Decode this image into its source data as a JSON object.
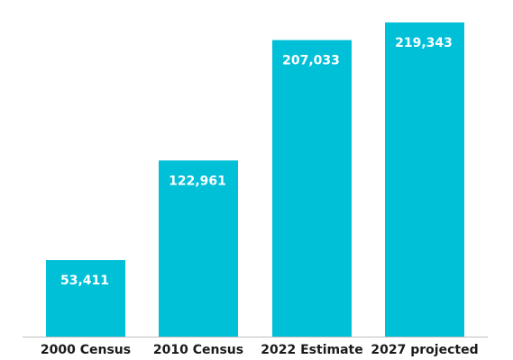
{
  "chart_data": {
    "type": "bar",
    "categories": [
      "2000 Census",
      "2010 Census",
      "2022 Estimate",
      "2027 projected"
    ],
    "values": [
      53411,
      122961,
      207033,
      219343
    ],
    "data_labels": [
      "53,411",
      "122,961",
      "207,033",
      "219,343"
    ],
    "title": "",
    "xlabel": "",
    "ylabel": "",
    "ylim": [
      0,
      235000
    ],
    "grid": false,
    "legend": "none",
    "colors": {
      "bar": "#00C0D8",
      "baseline": "#BFBFBF",
      "label_text": "#FFFFFF",
      "tick_text": "#1A1A1A"
    }
  }
}
